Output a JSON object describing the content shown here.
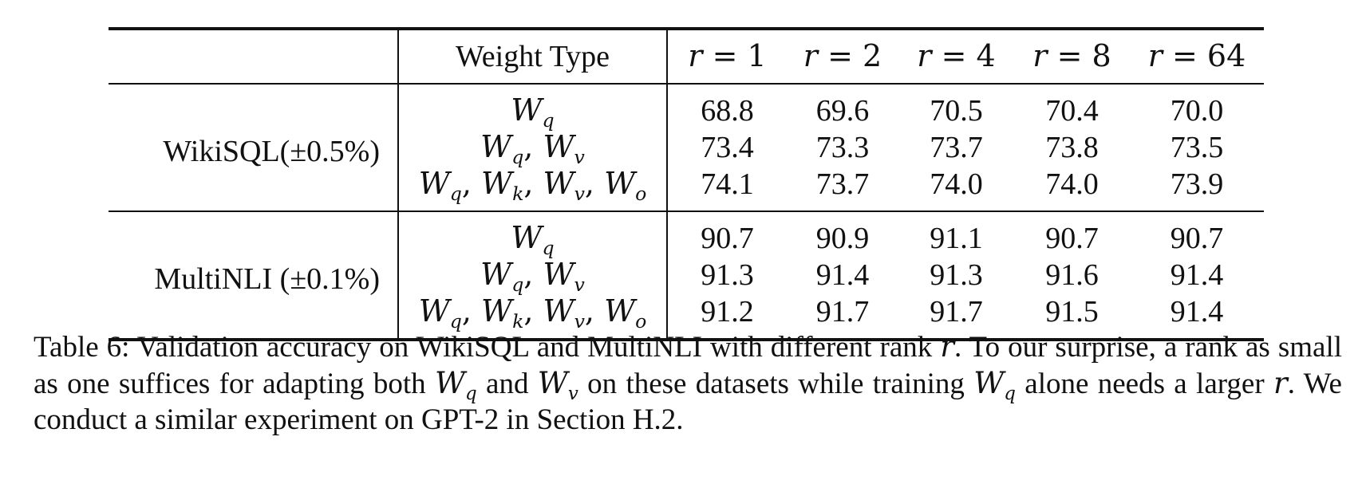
{
  "table": {
    "header": {
      "weight_type": "Weight Type",
      "ranks": [
        "1",
        "2",
        "4",
        "8",
        "64"
      ],
      "rank_var": "r"
    },
    "groups": [
      {
        "dataset": "WikiSQL(±0.5%)",
        "rows": [
          {
            "weights": [
              "q"
            ],
            "values": [
              "68.8",
              "69.6",
              "70.5",
              "70.4",
              "70.0"
            ]
          },
          {
            "weights": [
              "q",
              "v"
            ],
            "values": [
              "73.4",
              "73.3",
              "73.7",
              "73.8",
              "73.5"
            ]
          },
          {
            "weights": [
              "q",
              "k",
              "v",
              "o"
            ],
            "values": [
              "74.1",
              "73.7",
              "74.0",
              "74.0",
              "73.9"
            ]
          }
        ]
      },
      {
        "dataset": "MultiNLI (±0.1%)",
        "rows": [
          {
            "weights": [
              "q"
            ],
            "values": [
              "90.7",
              "90.9",
              "91.1",
              "90.7",
              "90.7"
            ]
          },
          {
            "weights": [
              "q",
              "v"
            ],
            "values": [
              "91.3",
              "91.4",
              "91.3",
              "91.6",
              "91.4"
            ]
          },
          {
            "weights": [
              "q",
              "k",
              "v",
              "o"
            ],
            "values": [
              "91.2",
              "91.7",
              "91.7",
              "91.5",
              "91.4"
            ]
          }
        ]
      }
    ]
  },
  "caption": {
    "part1": "Table 6: Validation accuracy on WikiSQL and MultiNLI with different rank ",
    "part2": ". To our surprise, a rank as small as one suffices for adapting both ",
    "part3": " and ",
    "part4": " on these datasets while training ",
    "part5": " alone needs a larger ",
    "part6": ". We conduct a similar experiment on GPT-2 in Section H.2."
  }
}
